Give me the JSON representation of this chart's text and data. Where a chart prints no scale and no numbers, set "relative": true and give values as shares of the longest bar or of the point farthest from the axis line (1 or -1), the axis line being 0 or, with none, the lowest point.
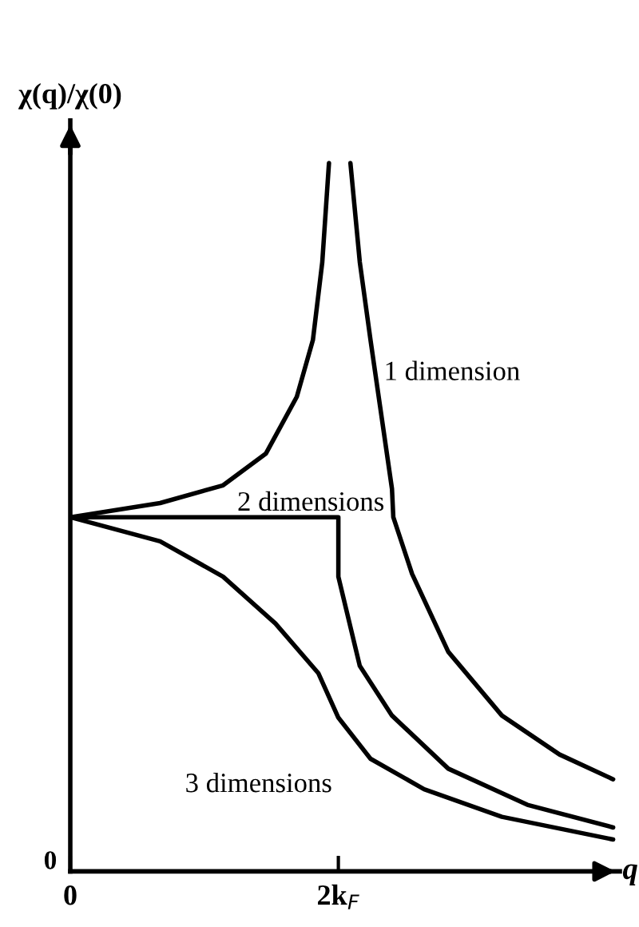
{
  "chart_data": {
    "type": "line",
    "relative": true,
    "xlabel": "q",
    "ylabel": "χ(q)/χ(0)",
    "xlim": [
      0,
      4.1
    ],
    "xticks": [
      {
        "value": 0,
        "label": "0"
      },
      {
        "value": 2,
        "label": "2k$_{F}$"
      }
    ],
    "grid": false,
    "marker": "none",
    "line_style": "solid",
    "series": [
      {
        "name": "1 dimension",
        "color": "#000000",
        "x": [
          0,
          0.67,
          1.14,
          1.46,
          1.69,
          1.81,
          1.88,
          1.93,
          2.0,
          2.09,
          2.16,
          2.24,
          2.4,
          2.41,
          2.55,
          2.82,
          3.22,
          3.65,
          4.05
        ],
        "values": [
          0.5,
          0.52,
          0.545,
          0.59,
          0.67,
          0.75,
          0.86,
          1.0,
          null,
          1.0,
          0.86,
          0.75,
          0.54,
          0.5,
          0.42,
          0.31,
          0.22,
          0.165,
          0.13
        ]
      },
      {
        "name": "2 dimensions",
        "color": "#000000",
        "x": [
          0,
          1,
          2.0,
          2.0,
          2.16,
          2.4,
          2.82,
          3.41,
          4.05
        ],
        "values": [
          0.5,
          0.5,
          0.5,
          0.416,
          0.29,
          0.22,
          0.145,
          0.094,
          0.062
        ]
      },
      {
        "name": "3 dimensions",
        "color": "#000000",
        "x": [
          0,
          0.67,
          1.14,
          1.53,
          1.85,
          2.0,
          2.24,
          2.64,
          3.22,
          4.05
        ],
        "values": [
          0.5,
          0.466,
          0.416,
          0.35,
          0.28,
          0.217,
          0.159,
          0.116,
          0.077,
          0.045
        ]
      }
    ],
    "annotations": [
      "0"
    ]
  }
}
